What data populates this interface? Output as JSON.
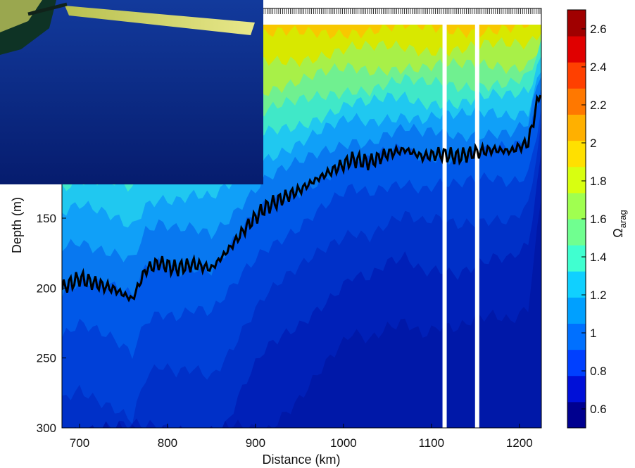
{
  "chart_data": {
    "type": "heatmap",
    "xlabel": "Distance (km)",
    "ylabel": "Depth (m)",
    "xlim": [
      680,
      1225
    ],
    "ylim": [
      300,
      0
    ],
    "x_ticks": [
      700,
      800,
      900,
      1000,
      1100,
      1200
    ],
    "y_ticks": [
      150,
      200,
      250,
      300
    ],
    "colorbar": {
      "label_main": "Ω",
      "label_sub": "arag",
      "range": [
        0.5,
        2.7
      ],
      "ticks": [
        0.6,
        0.8,
        1,
        1.2,
        1.4,
        1.6,
        1.8,
        2,
        2.2,
        2.4,
        2.6
      ]
    },
    "aragonite_saturation_horizon": {
      "description_omega": 1,
      "x": [
        680,
        700,
        720,
        740,
        760,
        775,
        790,
        810,
        830,
        850,
        870,
        890,
        910,
        930,
        950,
        970,
        990,
        1010,
        1030,
        1050,
        1070,
        1090,
        1110,
        1130,
        1150,
        1170,
        1190,
        1210,
        1225
      ],
      "depth": [
        200,
        193,
        197,
        201,
        208,
        187,
        182,
        186,
        183,
        186,
        172,
        156,
        143,
        136,
        130,
        122,
        115,
        108,
        110,
        104,
        101,
        106,
        104,
        106,
        103,
        101,
        102,
        96,
        55
      ]
    },
    "data_gaps_km": [
      1115,
      1152
    ]
  },
  "inset_photo": {
    "subject": "underwater glider",
    "colors": {
      "water": "#0a2a8a",
      "wing": "#d8d870"
    }
  }
}
